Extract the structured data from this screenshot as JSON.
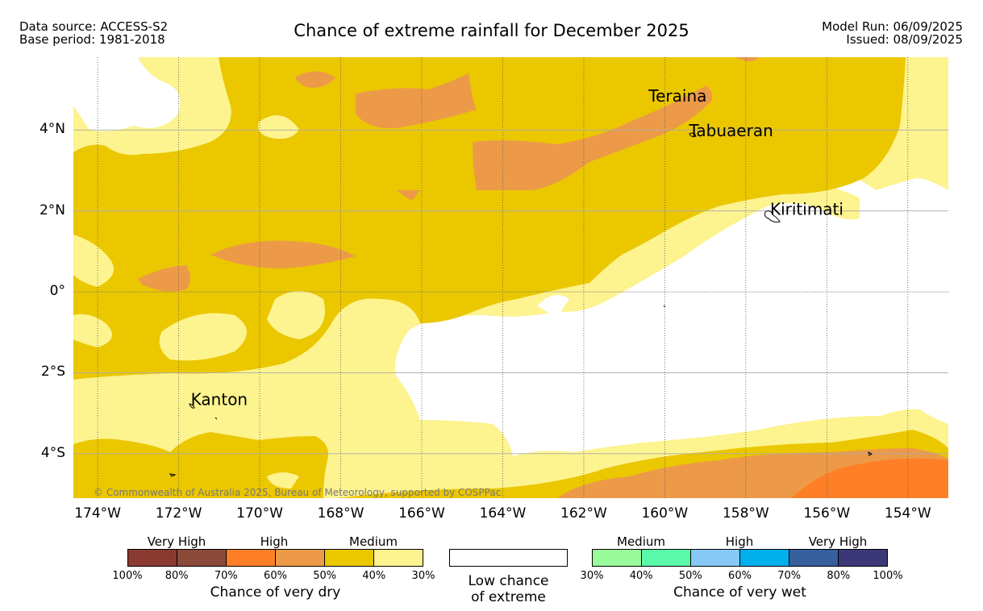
{
  "header": {
    "data_source": "Data source: ACCESS-S2",
    "base_period": "Base period: 1981-2018",
    "title": "Chance of extreme rainfall for December 2025",
    "model_run": "Model Run: 06/09/2025",
    "issued": "Issued: 08/09/2025"
  },
  "map": {
    "copyright": "© Commonwealth of Australia 2025, Bureau of Meteorology, supported by COSPPac",
    "places": [
      {
        "name": "Teraina",
        "lon": -160.4,
        "lat": 4.7
      },
      {
        "name": "Tabuaeran",
        "lon": -159.4,
        "lat": 3.85
      },
      {
        "name": "Kiritimati",
        "lon": -157.4,
        "lat": 1.9
      },
      {
        "name": "Kanton",
        "lon": -171.7,
        "lat": -2.8
      }
    ],
    "lon_range": [
      -174.6,
      -153.0
    ],
    "lat_range": [
      -5.1,
      5.8
    ],
    "x_ticks": [
      {
        "value": -174,
        "label": "174°W"
      },
      {
        "value": -172,
        "label": "172°W"
      },
      {
        "value": -170,
        "label": "170°W"
      },
      {
        "value": -168,
        "label": "168°W"
      },
      {
        "value": -166,
        "label": "166°W"
      },
      {
        "value": -164,
        "label": "164°W"
      },
      {
        "value": -162,
        "label": "162°W"
      },
      {
        "value": -160,
        "label": "160°W"
      },
      {
        "value": -158,
        "label": "158°W"
      },
      {
        "value": -156,
        "label": "156°W"
      },
      {
        "value": -154,
        "label": "154°W"
      }
    ],
    "y_ticks": [
      {
        "value": 4,
        "label": "4°N"
      },
      {
        "value": 2,
        "label": "2°N"
      },
      {
        "value": 0,
        "label": "0°"
      },
      {
        "value": -2,
        "label": "2°S"
      },
      {
        "value": -4,
        "label": "4°S"
      }
    ]
  },
  "legend": {
    "dry": {
      "categories": [
        "Very High",
        "High",
        "Medium"
      ],
      "colors": [
        "#8b3a32",
        "#8b4b3a",
        "#ff7f27",
        "#ec9a48",
        "#ebc700",
        "#fdf38f"
      ],
      "percents": [
        "100%",
        "80%",
        "70%",
        "60%",
        "50%",
        "40%",
        "30%"
      ],
      "title": "Chance of very dry"
    },
    "low": {
      "line1": "Low chance",
      "line2": "of extreme",
      "color": "#ffffff"
    },
    "wet": {
      "categories": [
        "Medium",
        "High",
        "Very High"
      ],
      "colors": [
        "#9afb9a",
        "#5af9a9",
        "#87c9f6",
        "#00b0ec",
        "#365f9d",
        "#3c3878"
      ],
      "percents": [
        "30%",
        "40%",
        "50%",
        "60%",
        "70%",
        "80%",
        "100%"
      ],
      "title": "Chance of very wet"
    }
  }
}
